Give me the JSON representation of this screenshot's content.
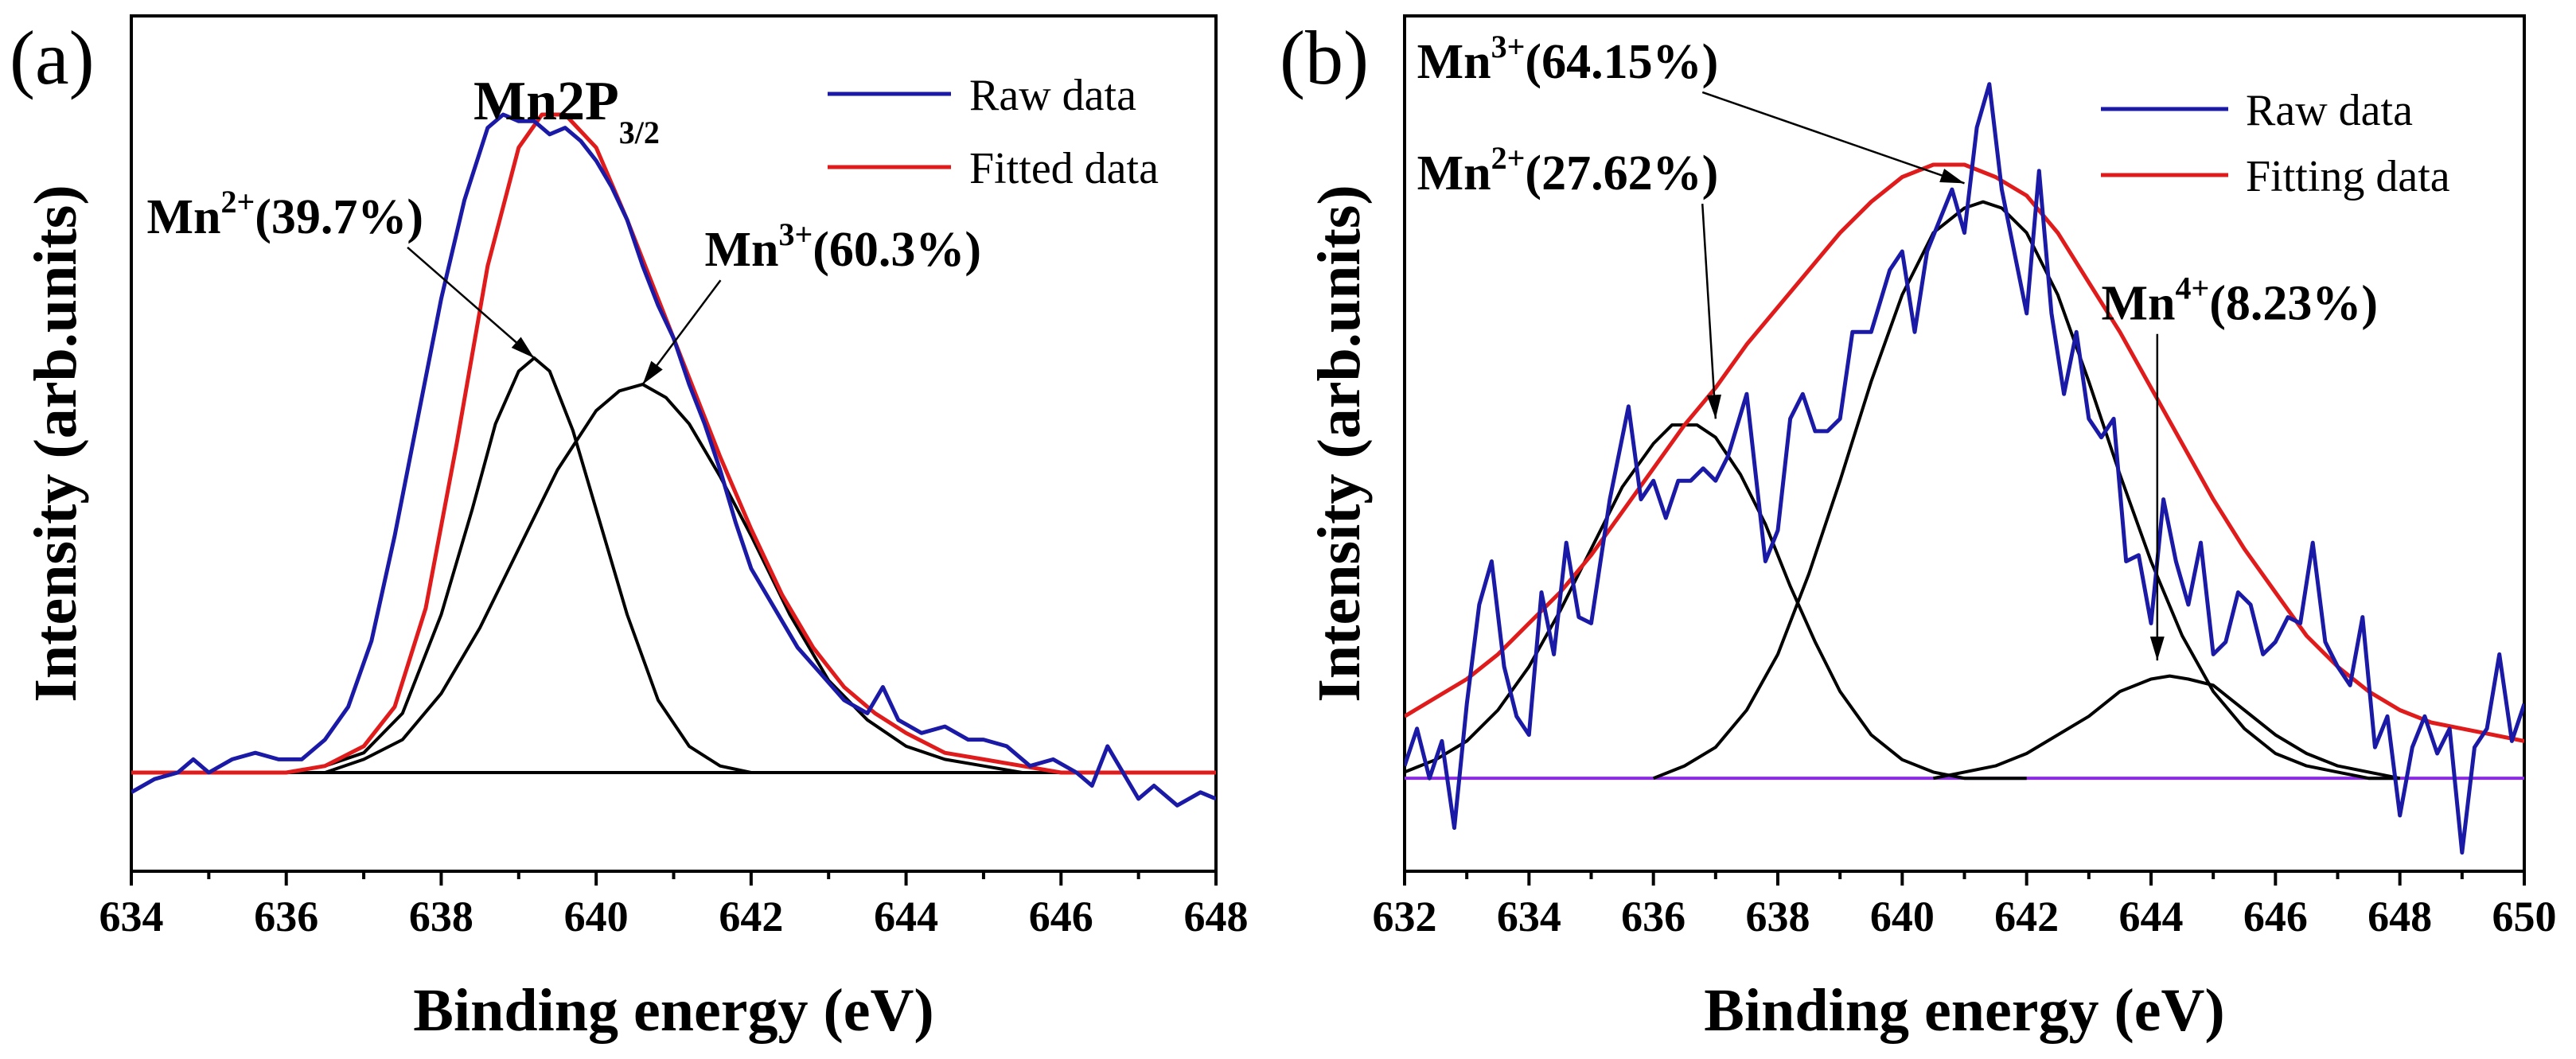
{
  "chart_data": [
    {
      "panel": "(a)",
      "type": "line",
      "title": "Mn2P3/2",
      "title_parts": {
        "main": "Mn2P",
        "sub": "3/2"
      },
      "xlabel": "Binding energy (eV)",
      "ylabel": "Intensity (arb.units)",
      "xlim": [
        634,
        648
      ],
      "ylim": [
        -0.15,
        1.15
      ],
      "xticks": [
        634,
        636,
        638,
        640,
        642,
        644,
        646,
        648
      ],
      "yticks_shown": false,
      "legend": {
        "position": "top-right",
        "entries": [
          "Raw data",
          "Fitted data"
        ]
      },
      "colors": {
        "raw": "#1a1aa6",
        "fit": "#e01b1b",
        "component": "#000000",
        "baseline": "#000000"
      },
      "baseline": 0.0,
      "series": [
        {
          "name": "Raw data",
          "kind": "raw",
          "x": [
            634.0,
            634.3,
            634.6,
            634.8,
            635.0,
            635.3,
            635.6,
            635.9,
            636.2,
            636.5,
            636.8,
            637.1,
            637.4,
            637.7,
            638.0,
            638.3,
            638.6,
            638.8,
            639.0,
            639.2,
            639.4,
            639.6,
            639.8,
            640.0,
            640.2,
            640.4,
            640.6,
            640.8,
            641.0,
            641.2,
            641.4,
            641.6,
            641.8,
            642.0,
            642.3,
            642.6,
            642.9,
            643.2,
            643.5,
            643.7,
            643.9,
            644.2,
            644.5,
            644.8,
            645.0,
            645.3,
            645.6,
            645.9,
            646.2,
            646.4,
            646.6,
            646.8,
            647.0,
            647.2,
            647.5,
            647.8,
            648.0
          ],
          "y": [
            -0.03,
            -0.01,
            0.0,
            0.02,
            0.0,
            0.02,
            0.03,
            0.02,
            0.02,
            0.05,
            0.1,
            0.2,
            0.36,
            0.54,
            0.72,
            0.87,
            0.98,
            1.0,
            0.99,
            0.99,
            0.97,
            0.98,
            0.96,
            0.93,
            0.89,
            0.84,
            0.77,
            0.71,
            0.66,
            0.59,
            0.53,
            0.46,
            0.38,
            0.31,
            0.25,
            0.19,
            0.15,
            0.11,
            0.09,
            0.13,
            0.08,
            0.06,
            0.07,
            0.05,
            0.05,
            0.04,
            0.01,
            0.02,
            0.0,
            -0.02,
            0.04,
            0.0,
            -0.04,
            -0.02,
            -0.05,
            -0.03,
            -0.04
          ]
        },
        {
          "name": "Fitted data",
          "kind": "fit",
          "x": [
            634.0,
            634.5,
            635.0,
            635.5,
            636.0,
            636.5,
            637.0,
            637.4,
            637.8,
            638.2,
            638.6,
            639.0,
            639.3,
            639.6,
            640.0,
            640.4,
            640.8,
            641.2,
            641.6,
            642.0,
            642.4,
            642.8,
            643.2,
            643.6,
            644.0,
            644.5,
            645.0,
            645.5,
            646.0,
            646.5,
            647.0,
            647.5,
            648.0
          ],
          "y": [
            0.0,
            0.0,
            0.0,
            0.0,
            0.0,
            0.01,
            0.04,
            0.1,
            0.25,
            0.5,
            0.77,
            0.95,
            1.0,
            1.0,
            0.95,
            0.84,
            0.72,
            0.6,
            0.48,
            0.37,
            0.27,
            0.19,
            0.13,
            0.09,
            0.06,
            0.03,
            0.02,
            0.01,
            0.0,
            0.0,
            0.0,
            0.0,
            0.0
          ]
        },
        {
          "name": "Mn2+ component",
          "kind": "component",
          "x": [
            636.0,
            636.5,
            637.0,
            637.5,
            638.0,
            638.4,
            638.7,
            639.0,
            639.2,
            639.4,
            639.7,
            640.0,
            640.4,
            640.8,
            641.2,
            641.6,
            642.0,
            642.5,
            643.0
          ],
          "y": [
            0.0,
            0.01,
            0.03,
            0.09,
            0.24,
            0.4,
            0.53,
            0.61,
            0.63,
            0.61,
            0.52,
            0.4,
            0.24,
            0.11,
            0.04,
            0.01,
            0.0,
            0.0,
            0.0
          ]
        },
        {
          "name": "Mn3+ component",
          "kind": "component",
          "x": [
            636.0,
            636.5,
            637.0,
            637.5,
            638.0,
            638.5,
            639.0,
            639.5,
            640.0,
            640.3,
            640.6,
            640.9,
            641.2,
            641.6,
            642.0,
            642.5,
            643.0,
            643.5,
            644.0,
            644.5,
            645.0,
            645.5,
            646.0,
            646.5,
            647.0
          ],
          "y": [
            0.0,
            0.0,
            0.02,
            0.05,
            0.12,
            0.22,
            0.34,
            0.46,
            0.55,
            0.58,
            0.59,
            0.57,
            0.53,
            0.45,
            0.36,
            0.24,
            0.14,
            0.08,
            0.04,
            0.02,
            0.01,
            0.0,
            0.0,
            0.0,
            0.0
          ]
        }
      ],
      "annotations": [
        {
          "label": "Mn",
          "sup": "2+",
          "text": "(39.7%)",
          "x": 634.2,
          "y": 0.82,
          "target": [
            639.2,
            0.63
          ]
        },
        {
          "label": "Mn",
          "sup": "3+",
          "text": "(60.3%)",
          "x": 641.4,
          "y": 0.77,
          "target": [
            640.6,
            0.59
          ]
        }
      ]
    },
    {
      "panel": "(b)",
      "type": "line",
      "xlabel": "Binding energy (eV)",
      "ylabel": "Intensity (arb.units)",
      "xlim": [
        632,
        650
      ],
      "ylim": [
        -0.15,
        1.23
      ],
      "xticks": [
        632,
        634,
        636,
        638,
        640,
        642,
        644,
        646,
        648,
        650
      ],
      "yticks_shown": false,
      "legend": {
        "position": "top-right",
        "entries": [
          "Raw data",
          "Fitting data"
        ]
      },
      "colors": {
        "raw": "#1a1aa6",
        "fit": "#e01b1b",
        "component": "#000000",
        "baseline": "#8a2be2"
      },
      "baseline": 0.0,
      "series": [
        {
          "name": "Raw data",
          "kind": "raw",
          "x": [
            632.0,
            632.2,
            632.4,
            632.6,
            632.8,
            633.0,
            633.2,
            633.4,
            633.6,
            633.8,
            634.0,
            634.2,
            634.4,
            634.6,
            634.8,
            635.0,
            635.3,
            635.6,
            635.8,
            636.0,
            636.2,
            636.4,
            636.6,
            636.8,
            637.0,
            637.2,
            637.5,
            637.8,
            638.0,
            638.2,
            638.4,
            638.6,
            638.8,
            639.0,
            639.2,
            639.5,
            639.8,
            640.0,
            640.2,
            640.4,
            640.6,
            640.8,
            641.0,
            641.2,
            641.4,
            641.6,
            641.8,
            642.0,
            642.2,
            642.4,
            642.6,
            642.8,
            643.0,
            643.2,
            643.4,
            643.6,
            643.8,
            644.0,
            644.2,
            644.4,
            644.6,
            644.8,
            645.0,
            645.2,
            645.4,
            645.6,
            645.8,
            646.0,
            646.2,
            646.4,
            646.6,
            646.8,
            647.0,
            647.2,
            647.4,
            647.6,
            647.8,
            648.0,
            648.2,
            648.4,
            648.6,
            648.8,
            649.0,
            649.2,
            649.4,
            649.6,
            649.8,
            650.0
          ],
          "y": [
            0.02,
            0.08,
            0.0,
            0.06,
            -0.08,
            0.12,
            0.28,
            0.35,
            0.18,
            0.1,
            0.07,
            0.3,
            0.2,
            0.38,
            0.26,
            0.25,
            0.45,
            0.6,
            0.45,
            0.48,
            0.42,
            0.48,
            0.48,
            0.5,
            0.48,
            0.52,
            0.62,
            0.35,
            0.4,
            0.58,
            0.62,
            0.56,
            0.56,
            0.58,
            0.72,
            0.72,
            0.82,
            0.85,
            0.72,
            0.85,
            0.9,
            0.95,
            0.88,
            1.05,
            1.12,
            0.95,
            0.85,
            0.75,
            0.98,
            0.75,
            0.62,
            0.72,
            0.58,
            0.55,
            0.58,
            0.35,
            0.36,
            0.25,
            0.45,
            0.35,
            0.28,
            0.38,
            0.2,
            0.22,
            0.3,
            0.28,
            0.2,
            0.22,
            0.26,
            0.25,
            0.38,
            0.22,
            0.18,
            0.15,
            0.26,
            0.05,
            0.1,
            -0.06,
            0.05,
            0.1,
            0.04,
            0.08,
            -0.12,
            0.05,
            0.08,
            0.2,
            0.06,
            0.12
          ]
        },
        {
          "name": "Fitting data",
          "kind": "fit",
          "x": [
            632.0,
            632.5,
            633.0,
            633.5,
            634.0,
            634.5,
            635.0,
            635.5,
            636.0,
            636.5,
            637.0,
            637.5,
            638.0,
            638.5,
            639.0,
            639.5,
            640.0,
            640.5,
            641.0,
            641.5,
            642.0,
            642.5,
            643.0,
            643.5,
            644.0,
            644.5,
            645.0,
            645.5,
            646.0,
            646.5,
            647.0,
            647.5,
            648.0,
            648.5,
            649.0,
            649.5,
            650.0
          ],
          "y": [
            0.1,
            0.13,
            0.16,
            0.2,
            0.25,
            0.3,
            0.36,
            0.43,
            0.5,
            0.57,
            0.63,
            0.7,
            0.76,
            0.82,
            0.88,
            0.93,
            0.97,
            0.99,
            0.99,
            0.97,
            0.94,
            0.88,
            0.8,
            0.72,
            0.63,
            0.54,
            0.45,
            0.37,
            0.3,
            0.23,
            0.18,
            0.14,
            0.11,
            0.09,
            0.08,
            0.07,
            0.06
          ]
        },
        {
          "name": "Mn2+ component",
          "kind": "component",
          "x": [
            632.0,
            632.5,
            633.0,
            633.5,
            634.0,
            634.5,
            635.0,
            635.5,
            636.0,
            636.3,
            636.7,
            637.0,
            637.4,
            637.8,
            638.2,
            638.6,
            639.0,
            639.5,
            640.0,
            640.5,
            641.0,
            641.5,
            642.0
          ],
          "y": [
            0.01,
            0.03,
            0.06,
            0.11,
            0.18,
            0.27,
            0.37,
            0.47,
            0.54,
            0.57,
            0.57,
            0.55,
            0.49,
            0.41,
            0.31,
            0.22,
            0.14,
            0.07,
            0.03,
            0.01,
            0.0,
            0.0,
            0.0
          ]
        },
        {
          "name": "Mn3+ component",
          "kind": "component",
          "x": [
            636.0,
            636.5,
            637.0,
            637.5,
            638.0,
            638.5,
            639.0,
            639.5,
            640.0,
            640.5,
            641.0,
            641.3,
            641.6,
            642.0,
            642.5,
            643.0,
            643.5,
            644.0,
            644.5,
            645.0,
            645.5,
            646.0,
            646.5,
            647.0,
            647.5,
            648.0
          ],
          "y": [
            0.0,
            0.02,
            0.05,
            0.11,
            0.2,
            0.33,
            0.48,
            0.64,
            0.78,
            0.88,
            0.92,
            0.93,
            0.92,
            0.88,
            0.78,
            0.64,
            0.49,
            0.35,
            0.23,
            0.14,
            0.08,
            0.04,
            0.02,
            0.01,
            0.0,
            0.0
          ]
        },
        {
          "name": "Mn4+ component",
          "kind": "component",
          "x": [
            640.5,
            641.0,
            641.5,
            642.0,
            642.5,
            643.0,
            643.5,
            644.0,
            644.3,
            644.6,
            645.0,
            645.5,
            646.0,
            646.5,
            647.0,
            647.5,
            648.0
          ],
          "y": [
            0.0,
            0.01,
            0.02,
            0.04,
            0.07,
            0.1,
            0.14,
            0.16,
            0.165,
            0.16,
            0.15,
            0.11,
            0.07,
            0.04,
            0.02,
            0.01,
            0.0
          ]
        }
      ],
      "annotations": [
        {
          "label": "Mn",
          "sup": "3+",
          "text": "(64.15%)",
          "x": 632.2,
          "y": 1.13,
          "target": [
            641.0,
            0.96
          ]
        },
        {
          "label": "Mn",
          "sup": "2+",
          "text": "(27.62%)",
          "x": 632.2,
          "y": 0.95,
          "target": [
            637.0,
            0.58
          ]
        },
        {
          "label": "Mn",
          "sup": "4+",
          "text": "(8.23%)",
          "x": 643.2,
          "y": 0.74,
          "target": [
            644.1,
            0.19
          ]
        }
      ]
    }
  ]
}
